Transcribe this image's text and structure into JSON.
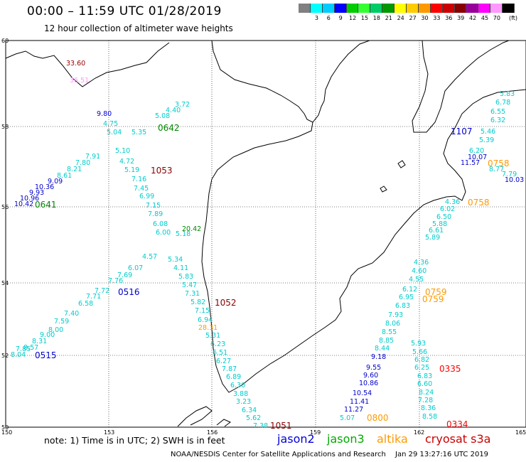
{
  "header": {
    "title": "00:00 – 11:59 UTC 01/28/2019",
    "subtitle": "12 hour collection of altimeter wave heights"
  },
  "legend": {
    "unit": "(ft)",
    "swatches": [
      {
        "color": "#808080",
        "label": ""
      },
      {
        "color": "#00ffff",
        "label": "3"
      },
      {
        "color": "#00ccff",
        "label": "6"
      },
      {
        "color": "#0000ff",
        "label": "9"
      },
      {
        "color": "#00cc00",
        "label": "12"
      },
      {
        "color": "#33ff33",
        "label": "15"
      },
      {
        "color": "#00cc66",
        "label": "18"
      },
      {
        "color": "#009900",
        "label": "21"
      },
      {
        "color": "#ffff00",
        "label": "24"
      },
      {
        "color": "#ffcc00",
        "label": "27"
      },
      {
        "color": "#ff9900",
        "label": "30"
      },
      {
        "color": "#ff0000",
        "label": "33"
      },
      {
        "color": "#cc0000",
        "label": "36"
      },
      {
        "color": "#880000",
        "label": "39"
      },
      {
        "color": "#990099",
        "label": "42"
      },
      {
        "color": "#ff00ff",
        "label": "45"
      },
      {
        "color": "#ff99ff",
        "label": "70"
      },
      {
        "color": "#000000",
        "label": ""
      }
    ]
  },
  "axes": {
    "lon_labels": [
      "150",
      "153",
      "156",
      "159",
      "162",
      "165"
    ],
    "lat_labels": [
      "60",
      "58",
      "56",
      "54",
      "52",
      "50"
    ]
  },
  "pass_times": [
    {
      "text": "0642",
      "color": "#008800"
    },
    {
      "text": "1053",
      "color": "#880000"
    },
    {
      "text": "0641",
      "color": "#008800"
    },
    {
      "text": "0516",
      "color": "#0000cc"
    },
    {
      "text": "0515",
      "color": "#0000cc"
    },
    {
      "text": "1052",
      "color": "#880000"
    },
    {
      "text": "1051",
      "color": "#880000"
    },
    {
      "text": "1107",
      "color": "#0000cc"
    },
    {
      "text": "0758",
      "color": "#ff9900"
    },
    {
      "text": "0758",
      "color": "#ff9900"
    },
    {
      "text": "0759",
      "color": "#ff9900"
    },
    {
      "text": "0759",
      "color": "#ff9900"
    },
    {
      "text": "0335",
      "color": "#ff0000"
    },
    {
      "text": "0334",
      "color": "#ff0000"
    },
    {
      "text": "0800",
      "color": "#ff9900"
    }
  ],
  "wave_heights": [
    {
      "text": "33.60",
      "color": "#990000"
    },
    {
      "text": "36.51",
      "color": "#ff99ff"
    },
    {
      "text": "9.80",
      "color": "#0000cc"
    },
    {
      "text": "3.72",
      "color": "#00cccc"
    },
    {
      "text": "4.40",
      "color": "#00cccc"
    },
    {
      "text": "5.08",
      "color": "#00cccc"
    },
    {
      "text": "4.75",
      "color": "#00cccc"
    },
    {
      "text": "5.04",
      "color": "#00cccc"
    },
    {
      "text": "5.35",
      "color": "#00cccc"
    },
    {
      "text": "5.10",
      "color": "#00cccc"
    },
    {
      "text": "4.72",
      "color": "#00cccc"
    },
    {
      "text": "5.19",
      "color": "#00cccc"
    },
    {
      "text": "7.16",
      "color": "#00cccc"
    },
    {
      "text": "7.45",
      "color": "#00cccc"
    },
    {
      "text": "6.99",
      "color": "#00cccc"
    },
    {
      "text": "7.15",
      "color": "#00cccc"
    },
    {
      "text": "7.89",
      "color": "#00cccc"
    },
    {
      "text": "6.08",
      "color": "#00cccc"
    },
    {
      "text": "7.91",
      "color": "#00cccc"
    },
    {
      "text": "7.80",
      "color": "#00cccc"
    },
    {
      "text": "8.21",
      "color": "#00cccc"
    },
    {
      "text": "8.61",
      "color": "#00cccc"
    },
    {
      "text": "9.09",
      "color": "#0000cc"
    },
    {
      "text": "10.36",
      "color": "#0000cc"
    },
    {
      "text": "9.93",
      "color": "#0000cc"
    },
    {
      "text": "10.96",
      "color": "#0000cc"
    },
    {
      "text": "10.42",
      "color": "#0000cc"
    },
    {
      "text": "20.42",
      "color": "#008800"
    },
    {
      "text": "6.00",
      "color": "#00cccc"
    },
    {
      "text": "5.18",
      "color": "#00cccc"
    },
    {
      "text": "5.34",
      "color": "#00cccc"
    },
    {
      "text": "4.11",
      "color": "#00cccc"
    },
    {
      "text": "5.83",
      "color": "#00cccc"
    },
    {
      "text": "5.47",
      "color": "#00cccc"
    },
    {
      "text": "7.31",
      "color": "#00cccc"
    },
    {
      "text": "5.82",
      "color": "#00cccc"
    },
    {
      "text": "7.15",
      "color": "#00cccc"
    },
    {
      "text": "6.94",
      "color": "#00cccc"
    },
    {
      "text": "28.31",
      "color": "#ff9900"
    },
    {
      "text": "5.31",
      "color": "#00cccc"
    },
    {
      "text": "6.23",
      "color": "#00cccc"
    },
    {
      "text": "6.51",
      "color": "#00cccc"
    },
    {
      "text": "6.27",
      "color": "#00cccc"
    },
    {
      "text": "7.87",
      "color": "#00cccc"
    },
    {
      "text": "6.89",
      "color": "#00cccc"
    },
    {
      "text": "6.30",
      "color": "#00cccc"
    },
    {
      "text": "3.88",
      "color": "#00cccc"
    },
    {
      "text": "3.23",
      "color": "#00cccc"
    },
    {
      "text": "6.34",
      "color": "#00cccc"
    },
    {
      "text": "5.62",
      "color": "#00cccc"
    },
    {
      "text": "7.38",
      "color": "#00cccc"
    },
    {
      "text": "4.57",
      "color": "#00cccc"
    },
    {
      "text": "6.07",
      "color": "#00cccc"
    },
    {
      "text": "7.69",
      "color": "#00cccc"
    },
    {
      "text": "7.76",
      "color": "#00cccc"
    },
    {
      "text": "7.72",
      "color": "#00cccc"
    },
    {
      "text": "7.71",
      "color": "#00cccc"
    },
    {
      "text": "6.58",
      "color": "#00cccc"
    },
    {
      "text": "7.40",
      "color": "#00cccc"
    },
    {
      "text": "7.59",
      "color": "#00cccc"
    },
    {
      "text": "8.00",
      "color": "#00cccc"
    },
    {
      "text": "9.00",
      "color": "#00cccc"
    },
    {
      "text": "8.31",
      "color": "#00cccc"
    },
    {
      "text": "8.57",
      "color": "#00cccc"
    },
    {
      "text": "7.85",
      "color": "#00cccc"
    },
    {
      "text": "8.04",
      "color": "#00cccc"
    },
    {
      "text": "5.83",
      "color": "#00cccc"
    },
    {
      "text": "6.78",
      "color": "#00cccc"
    },
    {
      "text": "6.55",
      "color": "#00cccc"
    },
    {
      "text": "6.32",
      "color": "#00cccc"
    },
    {
      "text": "5.46",
      "color": "#00cccc"
    },
    {
      "text": "5.39",
      "color": "#00cccc"
    },
    {
      "text": "6.20",
      "color": "#00cccc"
    },
    {
      "text": "10.07",
      "color": "#0000cc"
    },
    {
      "text": "11.57",
      "color": "#0000cc"
    },
    {
      "text": "8.77",
      "color": "#00cccc"
    },
    {
      "text": "7.79",
      "color": "#00cccc"
    },
    {
      "text": "10.03",
      "color": "#0000cc"
    },
    {
      "text": "4.36",
      "color": "#00cccc"
    },
    {
      "text": "6.02",
      "color": "#00cccc"
    },
    {
      "text": "6.50",
      "color": "#00cccc"
    },
    {
      "text": "5.88",
      "color": "#00cccc"
    },
    {
      "text": "6.61",
      "color": "#00cccc"
    },
    {
      "text": "5.89",
      "color": "#00cccc"
    },
    {
      "text": "4.36",
      "color": "#00cccc"
    },
    {
      "text": "4.60",
      "color": "#00cccc"
    },
    {
      "text": "4.55",
      "color": "#00cccc"
    },
    {
      "text": "6.12",
      "color": "#00cccc"
    },
    {
      "text": "6.95",
      "color": "#00cccc"
    },
    {
      "text": "6.83",
      "color": "#00cccc"
    },
    {
      "text": "7.93",
      "color": "#00cccc"
    },
    {
      "text": "8.06",
      "color": "#00cccc"
    },
    {
      "text": "8.55",
      "color": "#00cccc"
    },
    {
      "text": "8.85",
      "color": "#00cccc"
    },
    {
      "text": "8.44",
      "color": "#00cccc"
    },
    {
      "text": "9.18",
      "color": "#0000cc"
    },
    {
      "text": "9.55",
      "color": "#0000cc"
    },
    {
      "text": "9.60",
      "color": "#0000cc"
    },
    {
      "text": "10.86",
      "color": "#0000cc"
    },
    {
      "text": "10.54",
      "color": "#0000cc"
    },
    {
      "text": "11.41",
      "color": "#0000cc"
    },
    {
      "text": "11.27",
      "color": "#0000cc"
    },
    {
      "text": "5.07",
      "color": "#00cccc"
    },
    {
      "text": "5.93",
      "color": "#00cccc"
    },
    {
      "text": "5.66",
      "color": "#00cccc"
    },
    {
      "text": "6.82",
      "color": "#00cccc"
    },
    {
      "text": "6.25",
      "color": "#00cccc"
    },
    {
      "text": "6.83",
      "color": "#00cccc"
    },
    {
      "text": "6.60",
      "color": "#00cccc"
    },
    {
      "text": "8.24",
      "color": "#00cccc"
    },
    {
      "text": "7.28",
      "color": "#00cccc"
    },
    {
      "text": "8.36",
      "color": "#00cccc"
    },
    {
      "text": "8.58",
      "color": "#00cccc"
    }
  ],
  "footer": {
    "note": "note: 1) Time is in UTC; 2) SWH is in feet",
    "satellites": [
      {
        "name": "jason2",
        "color": "#0000dd"
      },
      {
        "name": "jason3",
        "color": "#00aa00"
      },
      {
        "name": "altika",
        "color": "#ff9900"
      },
      {
        "name": "cryosat s3a",
        "color": "#cc0000"
      }
    ],
    "credit": "NOAA/NESDIS Center for Satellite Applications and Research",
    "timestamp": "Jan 29 13:27:16 UTC 2019"
  }
}
